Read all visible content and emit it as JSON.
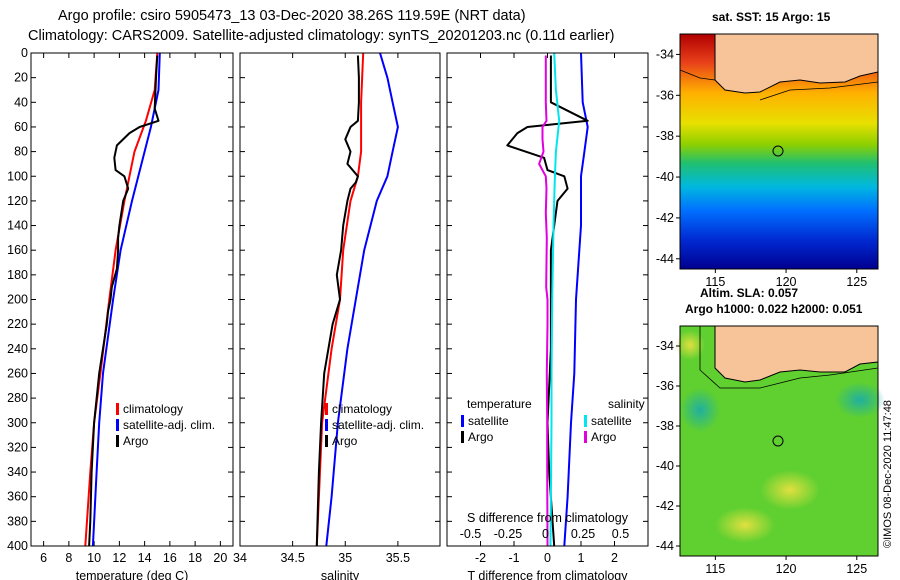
{
  "title_line1": "Argo profile: csiro 5905473_13 03-Dec-2020 38.26S 119.59E (NRT data)",
  "title_line2": "Climatology: CARS2009. Satellite-adjusted climatology: synTS_20201203.nc (0.11d earlier)",
  "credit": "©IMOS 08-Dec-2020 11:47:48",
  "colors": {
    "climatology": "#ff0000",
    "satellite": "#0000ff",
    "argo": "#000000",
    "sat_salinity": "#00e5ee",
    "argo_salinity_diff": "#e000e0"
  },
  "chart_data": [
    {
      "type": "line",
      "title": "",
      "xlabel": "temperature (deg C)",
      "ylabel": "depth",
      "xlim": [
        5,
        21
      ],
      "ylim": [
        400,
        0
      ],
      "x_ticks": [
        "6",
        "8",
        "10",
        "12",
        "14",
        "16",
        "18",
        "20"
      ],
      "x_tick_values": [
        6,
        8,
        10,
        12,
        14,
        16,
        18,
        20
      ],
      "y_ticks": [
        "0",
        "20",
        "40",
        "60",
        "80",
        "100",
        "120",
        "140",
        "160",
        "180",
        "200",
        "220",
        "240",
        "260",
        "280",
        "300",
        "320",
        "340",
        "360",
        "380",
        "400"
      ],
      "legend": [
        "climatology",
        "satellite-adj. clim.",
        "Argo"
      ],
      "series": [
        {
          "name": "climatology",
          "color_key": "climatology",
          "depth": [
            0,
            30,
            55,
            80,
            120,
            160,
            200,
            260,
            300,
            340,
            400
          ],
          "values": [
            15.0,
            14.8,
            14.1,
            13.2,
            12.4,
            11.7,
            11.2,
            10.5,
            10.0,
            9.7,
            9.3
          ]
        },
        {
          "name": "satellite-adj. clim.",
          "color_key": "satellite",
          "depth": [
            0,
            30,
            60,
            80,
            120,
            160,
            200,
            260,
            300,
            340,
            400
          ],
          "values": [
            15.2,
            15.1,
            14.5,
            14.0,
            13.0,
            12.1,
            11.5,
            10.7,
            10.4,
            10.2,
            9.9
          ]
        },
        {
          "name": "Argo",
          "color_key": "argo",
          "depth": [
            2,
            20,
            45,
            55,
            60,
            65,
            75,
            85,
            95,
            100,
            110,
            120,
            140,
            150,
            160,
            175,
            190,
            200,
            210,
            220,
            240,
            260,
            300,
            340,
            380,
            400
          ],
          "values": [
            15.0,
            14.9,
            14.8,
            15.1,
            13.6,
            12.8,
            11.8,
            11.6,
            11.7,
            12.4,
            12.7,
            12.3,
            12.0,
            11.9,
            11.9,
            11.8,
            11.4,
            11.3,
            11.1,
            11.0,
            10.7,
            10.4,
            10.0,
            9.8,
            9.7,
            9.6
          ]
        }
      ]
    },
    {
      "type": "line",
      "xlabel": "salinity",
      "xlim": [
        34.0,
        35.9
      ],
      "ylim": [
        400,
        0
      ],
      "x_ticks": [
        "34",
        "34.5",
        "35",
        "35.5"
      ],
      "x_tick_values": [
        34.0,
        34.5,
        35.0,
        35.5
      ],
      "legend": [
        "climatology",
        "satellite-adj. clim.",
        "Argo"
      ],
      "series": [
        {
          "name": "climatology",
          "color_key": "climatology",
          "depth": [
            0,
            40,
            80,
            100,
            120,
            160,
            200,
            240,
            300,
            360,
            400
          ],
          "values": [
            35.17,
            35.15,
            35.15,
            35.12,
            35.05,
            34.98,
            34.95,
            34.87,
            34.78,
            34.75,
            34.73
          ]
        },
        {
          "name": "satellite-adj. clim.",
          "color_key": "satellite",
          "depth": [
            0,
            20,
            40,
            60,
            80,
            100,
            120,
            160,
            200,
            240,
            300,
            360,
            400
          ],
          "values": [
            35.33,
            35.4,
            35.45,
            35.5,
            35.45,
            35.4,
            35.3,
            35.18,
            35.1,
            35.02,
            34.93,
            34.87,
            34.82
          ]
        },
        {
          "name": "Argo",
          "color_key": "argo",
          "depth": [
            2,
            20,
            40,
            55,
            60,
            70,
            80,
            90,
            100,
            105,
            110,
            120,
            140,
            160,
            180,
            200,
            220,
            260,
            300,
            340,
            400
          ],
          "values": [
            35.12,
            35.13,
            35.13,
            35.12,
            35.05,
            35.0,
            35.05,
            35.02,
            35.12,
            35.1,
            35.05,
            35.02,
            34.98,
            34.96,
            34.92,
            34.95,
            34.88,
            34.8,
            34.77,
            34.75,
            34.73
          ]
        }
      ]
    },
    {
      "type": "line",
      "xlabel": "T difference from climatology",
      "xlabel_top": "S difference from climatology",
      "xlim": [
        -3,
        3
      ],
      "ylim": [
        400,
        0
      ],
      "x_ticks": [
        "-2",
        "-1",
        "0",
        "1",
        "2"
      ],
      "x_tick_values": [
        -2,
        -1,
        0,
        1,
        2
      ],
      "s_ticks": [
        "-0.5",
        "-0.25",
        "0",
        "0.25",
        "0.5"
      ],
      "s_tick_values": [
        -0.5,
        -0.25,
        0,
        0.25,
        0.5
      ],
      "legend_left_title": "temperature",
      "legend_right_title": "salinity",
      "legend_left": [
        "satellite",
        "Argo"
      ],
      "legend_right": [
        "satellite",
        "Argo"
      ],
      "series": [
        {
          "name": "T satellite",
          "color_key": "satellite",
          "depth": [
            0,
            40,
            60,
            80,
            100,
            140,
            200,
            260,
            300,
            360,
            400
          ],
          "values": [
            1.0,
            1.05,
            1.2,
            1.1,
            1.0,
            1.0,
            0.85,
            0.8,
            0.7,
            0.6,
            0.5
          ]
        },
        {
          "name": "T Argo",
          "color_key": "argo",
          "depth": [
            2,
            40,
            55,
            60,
            65,
            75,
            85,
            95,
            100,
            110,
            120,
            140,
            160,
            180,
            200,
            240,
            300,
            340,
            400
          ],
          "values": [
            0.1,
            0.1,
            1.2,
            -0.6,
            -0.9,
            -1.2,
            -0.1,
            0.0,
            0.5,
            0.6,
            0.3,
            0.2,
            0.1,
            0.1,
            0.1,
            0.1,
            0.0,
            0.05,
            0.2
          ]
        },
        {
          "name": "S satellite",
          "color_key": "sat_salinity",
          "depth": [
            0,
            30,
            55,
            80,
            100,
            140,
            200,
            260,
            300,
            360,
            400
          ],
          "values": [
            0.2,
            0.25,
            0.35,
            0.25,
            0.22,
            0.18,
            0.14,
            0.12,
            0.12,
            0.1,
            0.09
          ]
        },
        {
          "name": "S Argo",
          "color_key": "argo_salinity_diff",
          "depth": [
            2,
            40,
            55,
            60,
            70,
            80,
            90,
            100,
            110,
            130,
            150,
            170,
            190,
            200,
            220,
            260,
            300,
            340,
            400
          ],
          "values": [
            -0.05,
            -0.05,
            -0.03,
            -0.15,
            -0.15,
            -0.12,
            -0.25,
            -0.05,
            -0.03,
            -0.05,
            -0.02,
            -0.03,
            -0.04,
            0.0,
            0.0,
            -0.02,
            -0.01,
            -0.01,
            0.0
          ]
        }
      ]
    }
  ],
  "maps": [
    {
      "title": "sat. SST: 15 Argo: 15",
      "lat_ticks": [
        "-34",
        "-36",
        "-38",
        "-40",
        "-42",
        "-44"
      ],
      "lon_ticks": [
        "115",
        "120",
        "125"
      ]
    },
    {
      "title_line1": "Altim. SLA: 0.057",
      "title_line2": "Argo h1000: 0.022 h2000: 0.051",
      "lat_ticks": [
        "-34",
        "-36",
        "-38",
        "-40",
        "-42",
        "-44"
      ],
      "lon_ticks": [
        "115",
        "120",
        "125"
      ]
    }
  ]
}
